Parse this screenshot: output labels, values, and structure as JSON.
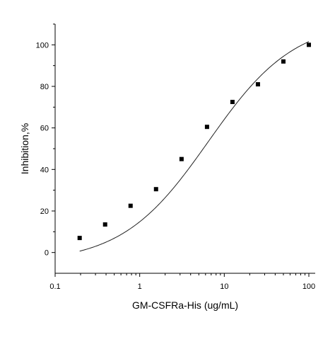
{
  "chart_data": {
    "type": "scatter",
    "xscale": "log",
    "xlabel": "GM-CSFRa-His (ug/mL)",
    "ylabel": "Inhibition,%",
    "xlim": [
      0.1,
      100
    ],
    "ylim": [
      -10,
      110
    ],
    "xticks": [
      0.1,
      1,
      10,
      100
    ],
    "xtick_labels": [
      "0.1",
      "1",
      "10",
      "100"
    ],
    "yticks": [
      0,
      20,
      40,
      60,
      80,
      100
    ],
    "ytick_labels": [
      "0",
      "20",
      "40",
      "60",
      "80",
      "100"
    ],
    "grid": false,
    "legend": "none",
    "series": [
      {
        "marker": "square",
        "color": "#000000",
        "x": [
          0.195,
          0.39,
          0.78,
          1.56,
          3.125,
          6.25,
          12.5,
          25,
          50,
          100
        ],
        "y": [
          7,
          13.5,
          22.5,
          30.5,
          45,
          60.5,
          72.5,
          81,
          92,
          100
        ]
      }
    ],
    "fit_curve": {
      "type": "4PL",
      "color": "#222222",
      "bottom": -5,
      "top": 112,
      "ec50": 6.5,
      "hill": 0.85,
      "x_range": [
        0.195,
        100
      ]
    }
  }
}
